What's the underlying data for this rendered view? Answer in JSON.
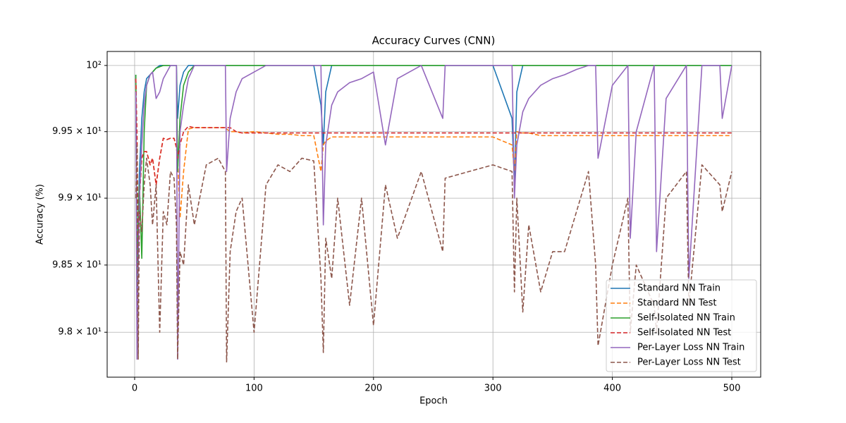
{
  "chart_data": {
    "type": "line",
    "title": "Accuracy Curves (CNN)",
    "x_label": "Epoch",
    "y_label": "Accuracy (%)",
    "log_scale_y": true,
    "grid": true,
    "legend_position": "lower right",
    "xlim": [
      -23,
      524.2
    ],
    "xticks": [
      0,
      100,
      200,
      300,
      400,
      500
    ],
    "ylim": [
      97.667,
      100.106
    ],
    "yticks": [
      {
        "value": 98,
        "label": "9.8 × 10¹"
      },
      {
        "value": 98.5,
        "label": "9.85 × 10¹"
      },
      {
        "value": 99,
        "label": "9.9 × 10¹"
      },
      {
        "value": 99.5,
        "label": "9.95 × 10¹"
      },
      {
        "value": 100,
        "label": "10²"
      }
    ],
    "x": [
      1,
      2,
      3,
      4,
      6,
      8,
      10,
      13,
      15,
      18,
      21,
      24,
      27,
      30,
      33,
      35,
      36,
      38,
      41,
      45,
      50,
      60,
      70,
      76,
      77,
      80,
      85,
      90,
      100,
      110,
      120,
      130,
      140,
      150,
      156,
      158,
      160,
      165,
      170,
      180,
      190,
      200,
      210,
      220,
      240,
      258,
      260,
      280,
      300,
      316,
      318,
      320,
      325,
      330,
      340,
      350,
      360,
      370,
      380,
      386,
      388,
      400,
      413,
      415,
      420,
      435,
      437,
      445,
      462,
      464,
      475,
      490,
      492,
      500
    ],
    "series": [
      {
        "name": "Standard NN Train",
        "color": "#1f77b4",
        "dashed": false,
        "values": [
          99.93,
          98.3,
          98.8,
          99.2,
          99.6,
          99.8,
          99.9,
          99.93,
          99.95,
          99.98,
          100,
          100,
          100,
          100,
          100,
          100,
          99.6,
          99.85,
          99.95,
          100,
          100,
          100,
          100,
          100,
          100,
          100,
          100,
          100,
          100,
          100,
          100,
          100,
          100,
          100,
          99.7,
          99.4,
          99.8,
          100,
          100,
          100,
          100,
          100,
          100,
          100,
          100,
          100,
          100,
          100,
          100,
          99.6,
          99.1,
          99.8,
          100,
          100,
          100,
          100,
          100,
          100,
          100,
          100,
          100,
          100,
          100,
          100,
          100,
          100,
          100,
          100,
          100,
          100,
          100,
          100,
          100,
          100
        ]
      },
      {
        "name": "Standard NN Test",
        "color": "#ff7f0e",
        "dashed": true,
        "values": [
          99.9,
          99.45,
          98.6,
          99.0,
          99.3,
          99.35,
          99.35,
          99.25,
          99.3,
          99.1,
          99.3,
          99.45,
          99.44,
          99.45,
          99.45,
          99.38,
          99.3,
          98.85,
          99.2,
          99.52,
          99.53,
          99.53,
          99.53,
          99.53,
          99.52,
          99.5,
          99.5,
          99.49,
          99.5,
          99.49,
          99.48,
          99.48,
          99.47,
          99.47,
          99.2,
          99.4,
          99.43,
          99.46,
          99.46,
          99.46,
          99.46,
          99.46,
          99.46,
          99.46,
          99.46,
          99.46,
          99.46,
          99.46,
          99.46,
          99.4,
          99.2,
          99.5,
          99.49,
          99.49,
          99.47,
          99.47,
          99.47,
          99.47,
          99.47,
          99.47,
          99.47,
          99.47,
          99.47,
          99.47,
          99.47,
          99.47,
          99.47,
          99.47,
          99.47,
          99.47,
          99.47,
          99.47,
          99.47,
          99.47
        ]
      },
      {
        "name": "Self-Isolated NN Train",
        "color": "#2ca02c",
        "dashed": false,
        "values": [
          99.93,
          98.2,
          98.9,
          99.1,
          98.55,
          99.5,
          99.85,
          99.93,
          99.95,
          99.98,
          99.99,
          100,
          100,
          100,
          100,
          100,
          99.2,
          99.6,
          99.85,
          99.95,
          100,
          100,
          100,
          100,
          100,
          100,
          100,
          100,
          100,
          100,
          100,
          100,
          100,
          100,
          100,
          100,
          100,
          100,
          100,
          100,
          100,
          100,
          100,
          100,
          100,
          100,
          100,
          100,
          100,
          100,
          100,
          100,
          100,
          100,
          100,
          100,
          100,
          100,
          100,
          100,
          100,
          100,
          100,
          100,
          100,
          100,
          100,
          100,
          100,
          100,
          100,
          100,
          100,
          100
        ]
      },
      {
        "name": "Self-Isolated NN Test",
        "color": "#d62728",
        "dashed": true,
        "values": [
          99.9,
          99.45,
          98.6,
          99.0,
          99.3,
          99.35,
          99.35,
          99.25,
          99.3,
          99.1,
          99.3,
          99.45,
          99.44,
          99.45,
          99.45,
          99.38,
          99.3,
          99.4,
          99.5,
          99.54,
          99.53,
          99.53,
          99.53,
          99.53,
          99.53,
          99.53,
          99.5,
          99.49,
          99.49,
          99.49,
          99.49,
          99.49,
          99.49,
          99.49,
          99.49,
          99.49,
          99.49,
          99.49,
          99.49,
          99.49,
          99.49,
          99.49,
          99.49,
          99.49,
          99.49,
          99.49,
          99.49,
          99.49,
          99.49,
          99.49,
          99.49,
          99.49,
          99.49,
          99.49,
          99.49,
          99.49,
          99.49,
          99.49,
          99.49,
          99.49,
          99.49,
          99.49,
          99.49,
          99.49,
          99.49,
          99.49,
          99.49,
          99.49,
          99.49,
          99.49,
          99.49,
          99.49,
          99.49,
          99.49
        ]
      },
      {
        "name": "Per-Layer Loss NN Train",
        "color": "#9467bd",
        "dashed": false,
        "values": [
          99.8,
          97.8,
          98.5,
          99.0,
          99.4,
          99.7,
          99.85,
          99.93,
          99.95,
          99.75,
          99.8,
          99.9,
          99.95,
          100,
          100,
          100,
          97.8,
          99.5,
          99.7,
          99.9,
          100,
          100,
          100,
          100,
          99.2,
          99.6,
          99.8,
          99.9,
          99.95,
          100,
          100,
          100,
          100,
          100,
          100,
          98.8,
          99.4,
          99.7,
          99.8,
          99.87,
          99.9,
          99.95,
          99.4,
          99.9,
          100,
          99.6,
          100,
          100,
          100,
          100,
          99.0,
          99.4,
          99.65,
          99.75,
          99.85,
          99.9,
          99.93,
          99.97,
          100,
          100,
          99.3,
          99.85,
          100,
          98.7,
          99.5,
          100,
          98.6,
          99.75,
          100,
          98.4,
          100,
          100,
          99.6,
          100
        ]
      },
      {
        "name": "Per-Layer Loss NN Test",
        "color": "#8c564b",
        "dashed": true,
        "values": [
          99.0,
          99.4,
          97.8,
          98.9,
          98.75,
          99.1,
          99.3,
          99.1,
          98.8,
          99.1,
          98.0,
          98.9,
          98.8,
          99.2,
          99.15,
          98.8,
          97.8,
          98.6,
          98.5,
          99.1,
          98.8,
          99.25,
          99.3,
          99.2,
          97.78,
          98.6,
          98.9,
          99.0,
          98.0,
          99.1,
          99.25,
          99.2,
          99.3,
          99.28,
          98.4,
          97.85,
          98.7,
          98.4,
          99.0,
          98.2,
          99.0,
          98.05,
          99.1,
          98.7,
          99.2,
          98.6,
          99.15,
          99.2,
          99.25,
          99.2,
          98.3,
          99.0,
          98.15,
          98.8,
          98.3,
          98.6,
          98.6,
          98.9,
          99.2,
          98.5,
          97.9,
          98.5,
          99.0,
          98.0,
          98.5,
          98.2,
          98.0,
          99.0,
          99.2,
          98.2,
          99.25,
          99.1,
          98.9,
          99.2
        ]
      }
    ]
  }
}
